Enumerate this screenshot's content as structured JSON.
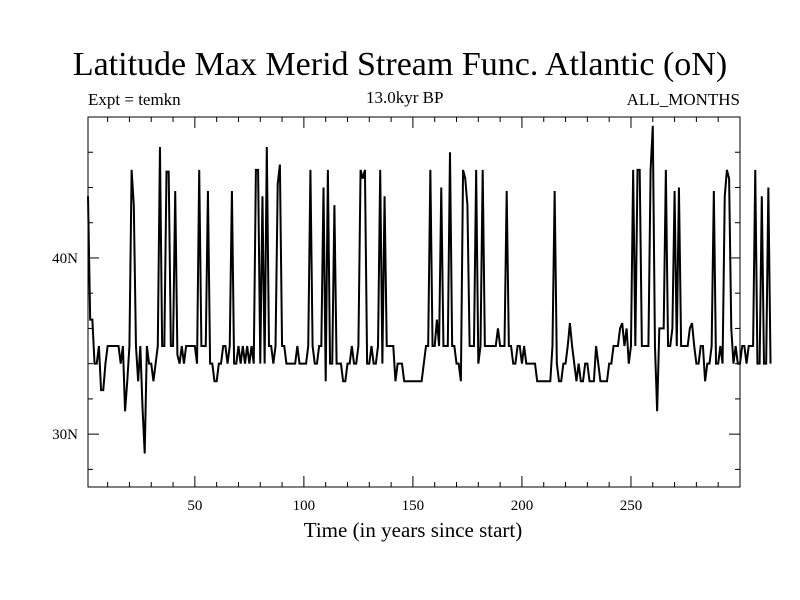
{
  "chart_data": {
    "type": "line",
    "title": "Latitude Max Merid Stream Func. Atlantic (oN)",
    "subtitle": "13.0kyr BP",
    "left_label": "Expt = temkn",
    "right_label": "ALL_MONTHS",
    "xlabel": "Time (in years since start)",
    "ylabel": "",
    "xlim": [
      1,
      300
    ],
    "ylim": [
      27,
      48
    ],
    "x_ticks": [
      {
        "value": 50,
        "label": "50"
      },
      {
        "value": 100,
        "label": "100"
      },
      {
        "value": 150,
        "label": "150"
      },
      {
        "value": 200,
        "label": "200"
      },
      {
        "value": 250,
        "label": "250"
      }
    ],
    "y_ticks": [
      {
        "value": 30,
        "label": "30N"
      },
      {
        "value": 40,
        "label": "40N"
      }
    ],
    "x_minor_step": 10,
    "y_minor_step": 2,
    "series": [
      {
        "name": "latitude_max",
        "values": [
          43.5,
          36.5,
          36.5,
          34,
          34,
          35,
          32.5,
          32.5,
          34,
          35,
          35,
          35,
          35,
          35,
          35,
          34,
          35,
          31.3,
          33,
          35,
          45,
          43,
          35,
          33,
          35,
          31.5,
          28.9,
          35,
          34,
          34,
          33,
          34,
          35,
          46.3,
          35,
          35,
          44.9,
          44.9,
          35,
          35,
          43.8,
          34.5,
          34,
          35,
          34,
          35,
          35,
          35,
          35,
          35,
          34,
          45,
          35,
          35,
          35,
          43.8,
          34,
          34,
          33,
          33,
          34,
          34,
          35,
          35,
          34,
          35,
          43.8,
          34,
          34,
          35,
          34,
          35,
          34,
          35,
          34,
          35,
          34,
          45,
          45,
          34,
          43.5,
          34,
          46.3,
          35,
          35,
          34,
          35,
          44.2,
          45.3,
          35,
          35,
          34,
          34,
          34,
          34,
          34,
          35,
          34,
          34,
          34,
          34,
          35,
          45,
          35,
          34,
          34,
          35,
          35,
          44,
          33,
          45,
          34,
          34,
          43,
          34,
          34,
          34,
          33,
          33,
          34,
          34,
          35,
          34,
          34,
          35,
          45,
          44.5,
          45,
          34,
          34,
          35,
          34,
          34,
          35,
          45,
          34,
          43.5,
          35,
          35,
          35,
          35,
          33,
          34,
          34,
          34,
          33,
          33,
          33,
          33,
          33,
          33,
          33,
          33,
          33,
          34,
          35,
          35,
          45,
          35,
          35,
          36.5,
          35,
          44,
          35,
          35,
          35,
          46,
          35,
          35,
          34,
          34,
          33,
          45,
          44.5,
          43,
          35,
          35,
          35,
          45,
          34,
          35,
          45,
          35,
          35,
          35,
          35,
          35,
          35,
          36,
          35,
          35,
          35,
          43.8,
          35,
          35,
          34,
          34,
          35,
          35,
          34,
          35,
          34,
          34,
          34,
          34,
          34,
          33,
          33,
          33,
          33,
          33,
          33,
          33,
          35,
          43.8,
          34,
          33,
          33,
          34,
          34,
          35,
          36.3,
          35,
          34,
          33,
          34,
          33,
          33,
          34,
          34,
          33,
          33,
          33,
          35,
          34,
          33,
          33,
          33,
          33,
          34,
          34,
          35,
          35,
          35,
          36,
          36.3,
          35,
          36,
          34,
          35,
          45,
          35,
          45,
          45,
          35,
          35,
          35,
          35,
          45,
          47.5,
          35,
          31.3,
          36,
          36,
          36,
          45,
          35,
          35,
          36,
          43.8,
          35,
          44,
          35,
          35,
          35,
          35,
          36,
          36.3,
          35,
          34,
          34,
          35,
          35,
          33,
          34,
          34,
          35,
          43.8,
          34,
          34,
          35,
          34,
          43.5,
          45,
          44.5,
          36,
          34,
          35,
          34,
          34,
          35,
          35,
          34,
          35,
          35,
          35,
          45,
          34,
          34,
          43.5,
          34,
          34,
          44,
          34
        ]
      }
    ]
  }
}
